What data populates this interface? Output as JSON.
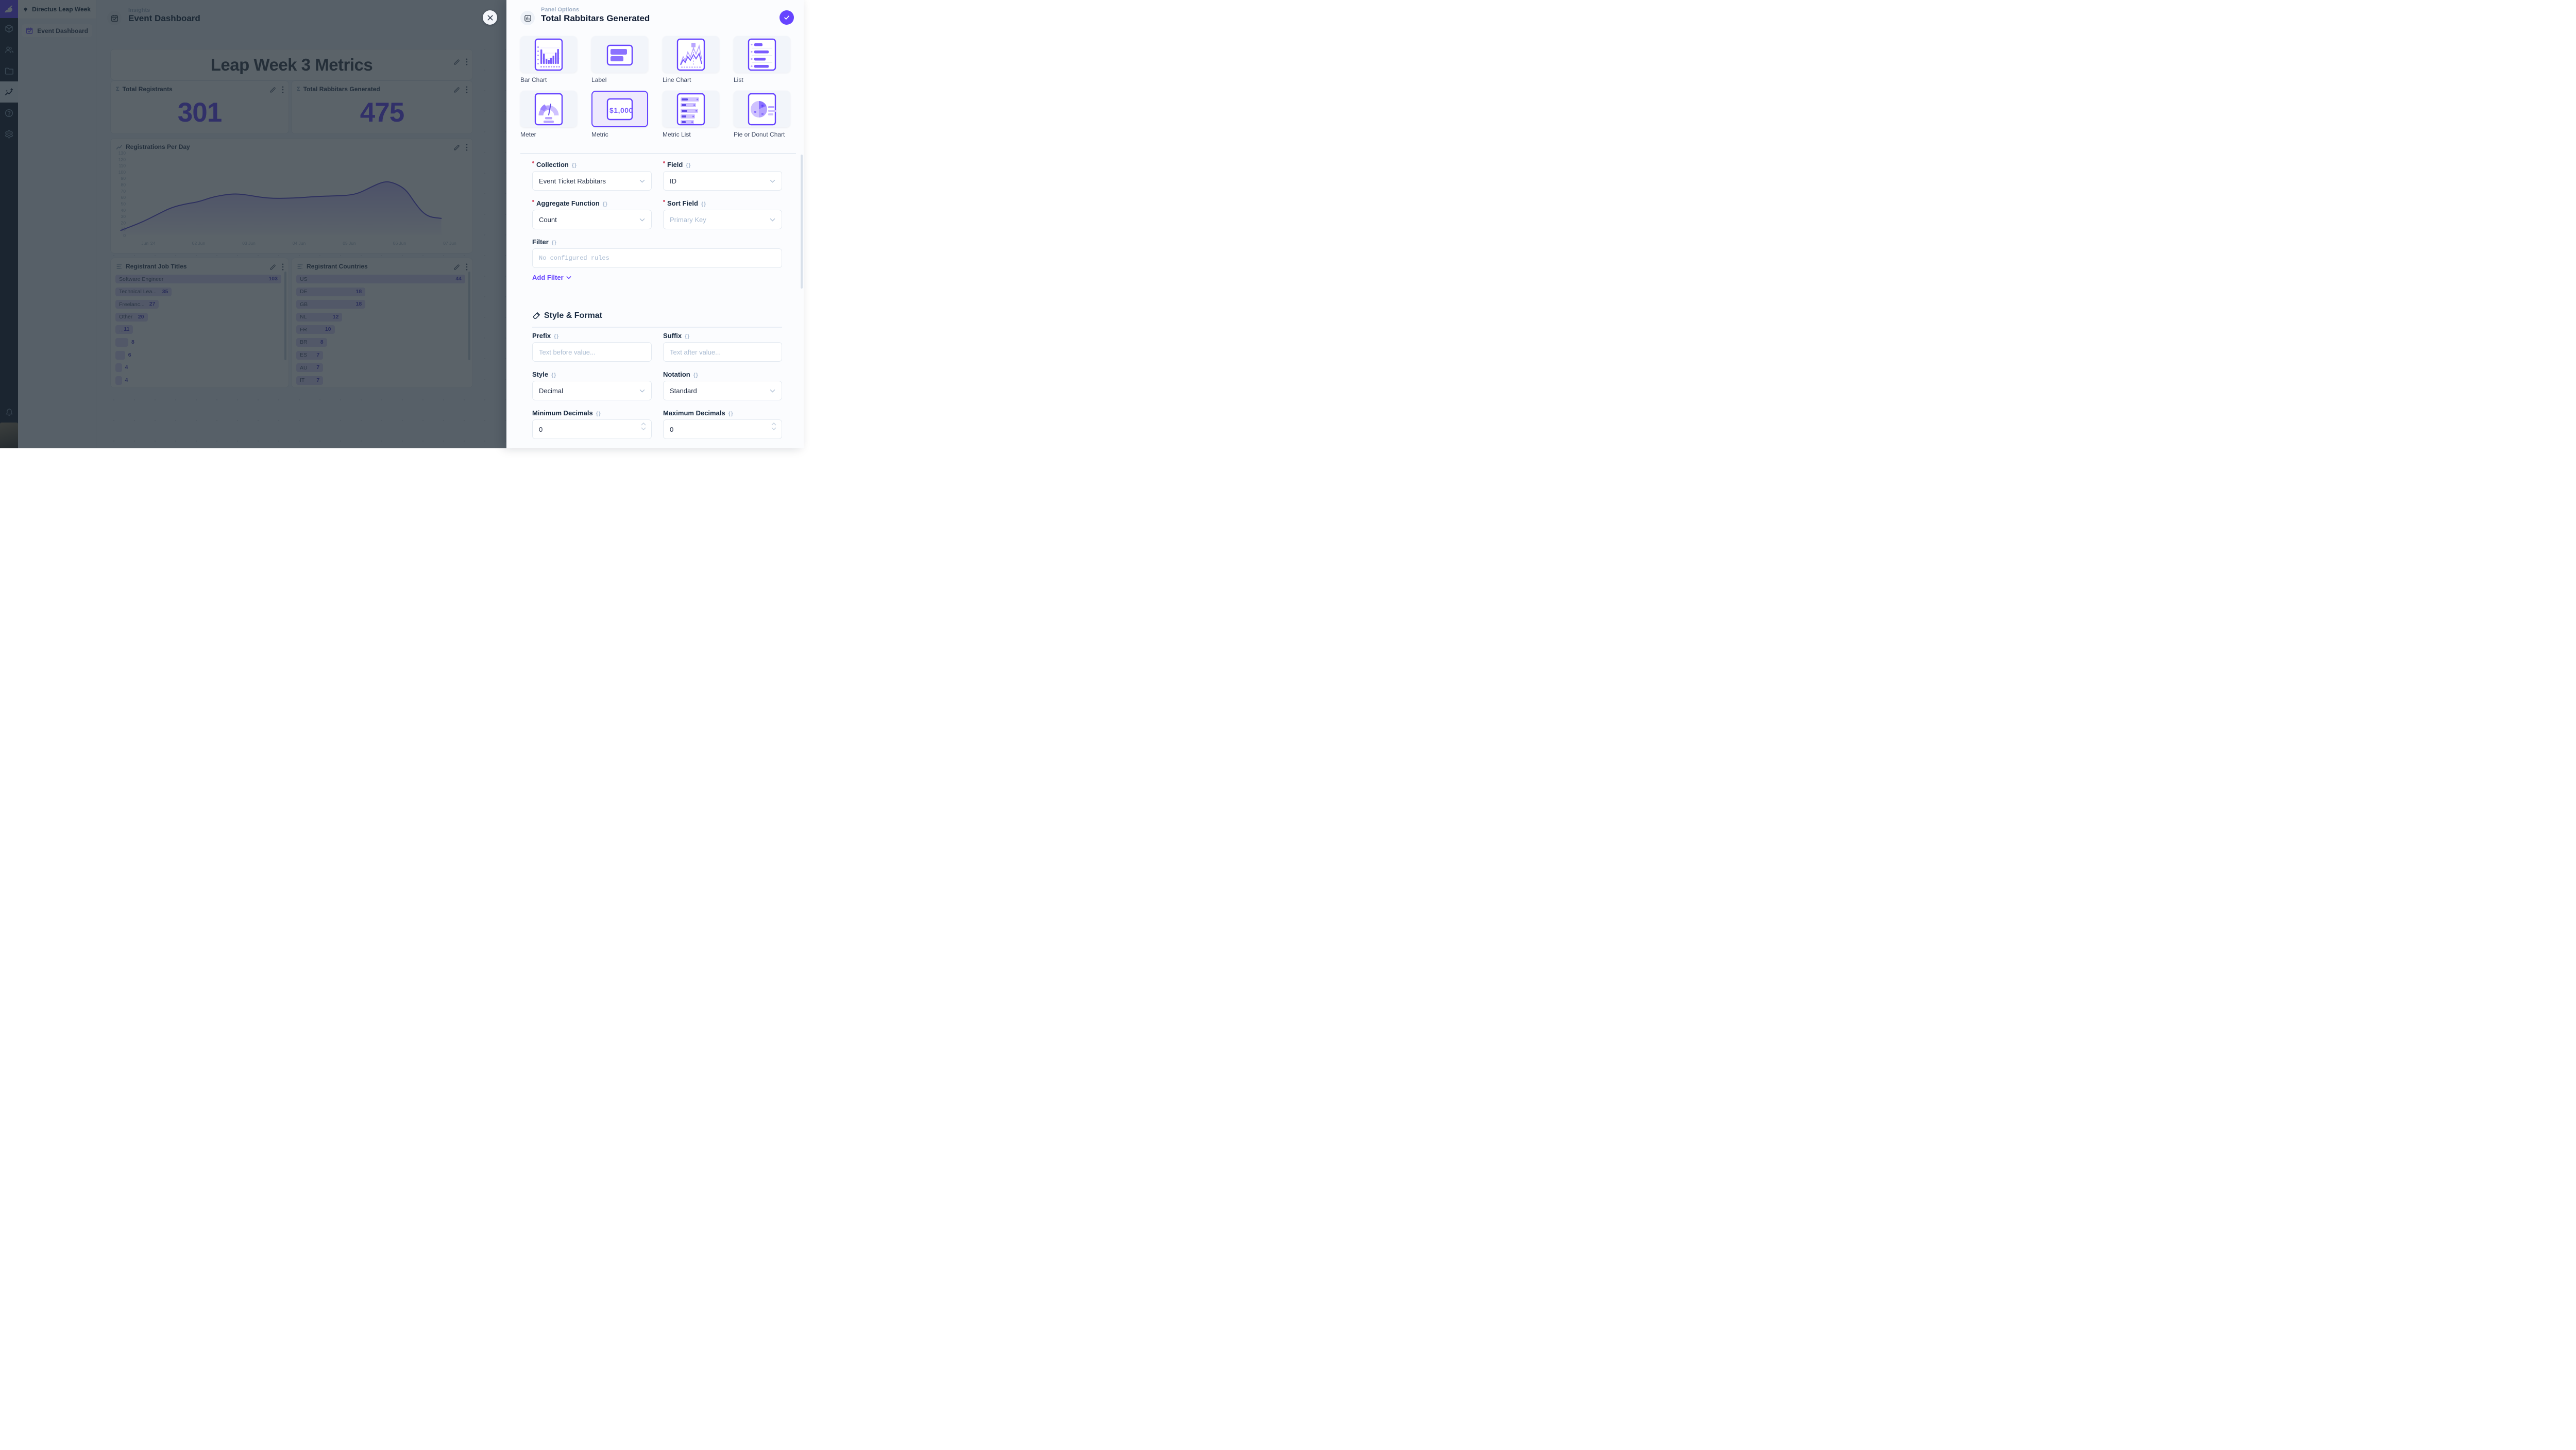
{
  "accent_color": "#6644FF",
  "module_bar": {
    "logo_icon": "directus-rabbit-logo",
    "items": [
      {
        "icon": "box",
        "active": false
      },
      {
        "icon": "users",
        "active": false
      },
      {
        "icon": "folder",
        "active": false
      },
      {
        "icon": "insights",
        "active": true
      },
      {
        "icon": "help",
        "active": false
      },
      {
        "icon": "settings",
        "active": false
      }
    ],
    "bottom_icons": [
      "bell",
      "avatar"
    ]
  },
  "nav": {
    "project_name": "Directus Leap Week",
    "items": [
      {
        "icon": "calendar-check",
        "label": "Event Dashboard",
        "active": true
      }
    ]
  },
  "header": {
    "kicker": "Insights",
    "title": "Event Dashboard"
  },
  "dashboard": {
    "title_panel": {
      "text": "Leap Week 3 Metrics"
    },
    "metrics": [
      {
        "label": "Total Registrants",
        "value": "301"
      },
      {
        "label": "Total Rabbitars Generated",
        "value": "475"
      }
    ]
  },
  "chart_data": [
    {
      "type": "area",
      "title": "Registrations Per Day",
      "x_tick_labels": [
        "Jun '24",
        "02 Jun",
        "03 Jun",
        "04 Jun",
        "05 Jun",
        "06 Jun",
        "07 Jun"
      ],
      "y_ticks": [
        0,
        10,
        20,
        30,
        40,
        50,
        60,
        70,
        80,
        90,
        100,
        110,
        120,
        130
      ],
      "ylim": [
        0,
        130
      ],
      "grid": false,
      "line_color": "#5A49D8",
      "points": [
        [
          -0.55,
          8
        ],
        [
          -0.35,
          14
        ],
        [
          -0.1,
          22
        ],
        [
          0.15,
          32
        ],
        [
          0.45,
          44
        ],
        [
          0.75,
          50
        ],
        [
          1,
          53
        ],
        [
          1.25,
          60
        ],
        [
          1.5,
          64
        ],
        [
          1.75,
          66
        ],
        [
          2,
          63.5
        ],
        [
          2.25,
          60
        ],
        [
          2.5,
          58.5
        ],
        [
          2.75,
          58.7
        ],
        [
          3,
          59.5
        ],
        [
          3.25,
          61
        ],
        [
          3.5,
          62
        ],
        [
          3.75,
          62.5
        ],
        [
          4,
          63.5
        ],
        [
          4.2,
          67
        ],
        [
          4.45,
          77
        ],
        [
          4.65,
          84
        ],
        [
          4.8,
          85
        ],
        [
          5,
          79
        ],
        [
          5.15,
          70
        ],
        [
          5.3,
          52
        ],
        [
          5.45,
          37
        ],
        [
          5.6,
          29
        ],
        [
          5.83,
          27
        ]
      ]
    },
    {
      "type": "bar",
      "orientation": "horizontal",
      "title": "Registrant Job Titles",
      "categories": [
        "Software Engineer",
        "Technical Lea...",
        "Freelanc...",
        "Other",
        "...",
        "",
        "",
        "",
        ""
      ],
      "values": [
        103,
        35,
        27,
        20,
        11,
        8,
        6,
        4,
        4
      ]
    },
    {
      "type": "bar",
      "orientation": "horizontal",
      "title": "Registrant Countries",
      "categories": [
        "US",
        "DE",
        "GB",
        "NL",
        "FR",
        "BR",
        "ES",
        "AU",
        "IT"
      ],
      "values": [
        44,
        18,
        18,
        12,
        10,
        8,
        7,
        7,
        7
      ]
    }
  ],
  "drawer": {
    "kicker": "Panel Options",
    "title": "Total Rabbitars Generated",
    "panel_types": [
      {
        "key": "bar-chart",
        "label": "Bar Chart",
        "selected": false
      },
      {
        "key": "label",
        "label": "Label",
        "selected": false
      },
      {
        "key": "line-chart",
        "label": "Line Chart",
        "selected": false
      },
      {
        "key": "list",
        "label": "List",
        "selected": false
      },
      {
        "key": "meter",
        "label": "Meter",
        "selected": false
      },
      {
        "key": "metric",
        "label": "Metric",
        "selected": true
      },
      {
        "key": "metric-list",
        "label": "Metric List",
        "selected": false
      },
      {
        "key": "pie",
        "label": "Pie or Donut Chart",
        "selected": false
      }
    ],
    "form": {
      "collection": {
        "label": "Collection",
        "value": "Event Ticket Rabbitars"
      },
      "field": {
        "label": "Field",
        "value": "ID"
      },
      "aggregate": {
        "label": "Aggregate Function",
        "value": "Count"
      },
      "sort_field": {
        "label": "Sort Field",
        "placeholder": "Primary Key"
      },
      "filter": {
        "label": "Filter",
        "placeholder": "No configured rules",
        "add_label": "Add Filter"
      },
      "style_format_heading": "Style & Format",
      "prefix": {
        "label": "Prefix",
        "placeholder": "Text before value..."
      },
      "suffix": {
        "label": "Suffix",
        "placeholder": "Text after value..."
      },
      "style": {
        "label": "Style",
        "value": "Decimal"
      },
      "notation": {
        "label": "Notation",
        "value": "Standard"
      },
      "min_decimals": {
        "label": "Minimum Decimals",
        "value": "0"
      },
      "max_decimals": {
        "label": "Maximum Decimals",
        "value": "0"
      }
    }
  }
}
